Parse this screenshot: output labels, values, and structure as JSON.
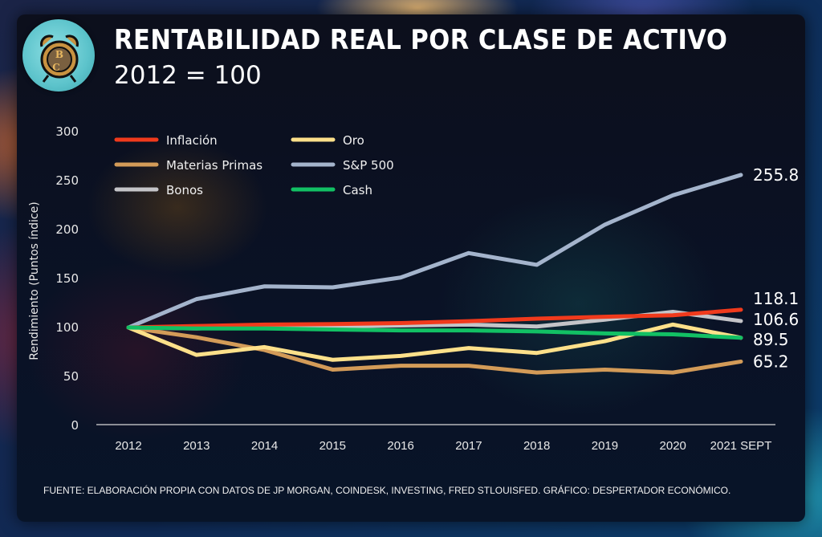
{
  "header": {
    "title": "RENTABILIDAD REAL POR CLASE DE ACTIVO",
    "subtitle": "2012 = 100"
  },
  "source": "FUENTE:  ELABORACIÓN PROPIA CON DATOS DE JP MORGAN, COINDESK, INVESTING, FRED STLOUISFED.  GRÁFICO: DESPERTADOR ECONÓMICO.",
  "logo": "alarm-clock-logo",
  "chart_data": {
    "type": "line",
    "title": "RENTABILIDAD REAL POR CLASE DE ACTIVO",
    "subtitle": "2012 = 100",
    "xlabel": "",
    "ylabel": "Rendimiento (Puntos índice)",
    "ylim": [
      0,
      300
    ],
    "yticks": [
      0,
      50,
      100,
      150,
      200,
      250,
      300
    ],
    "grid": false,
    "legend_position": "top-left",
    "categories": [
      "2012",
      "2013",
      "2014",
      "2015",
      "2016",
      "2017",
      "2018",
      "2019",
      "2020",
      "2021 SEPT"
    ],
    "series": [
      {
        "name": "Inflación",
        "color": "#f03a1c",
        "values": [
          100,
          101.5,
          103,
          103.5,
          104.5,
          106.5,
          109,
          111,
          112.5,
          118.1
        ],
        "end_label": "118.1"
      },
      {
        "name": "Materias Primas",
        "color": "#d39b58",
        "values": [
          100,
          90,
          77,
          57,
          61,
          61,
          54,
          57,
          54,
          65.2
        ],
        "end_label": "65.2"
      },
      {
        "name": "Bonos",
        "color": "#c4c4c8",
        "values": [
          100,
          99,
          101,
          101,
          102,
          103,
          101,
          108,
          116,
          106.6
        ],
        "end_label": "106.6"
      },
      {
        "name": "Oro",
        "color": "#fde08a",
        "values": [
          100,
          72,
          80,
          67,
          71,
          79,
          74,
          86,
          103,
          89.5
        ],
        "end_label": "89.5"
      },
      {
        "name": "S&P 500",
        "color": "#a4b4cc",
        "values": [
          100,
          129,
          142,
          141,
          151,
          176,
          164,
          205,
          235,
          255.8
        ],
        "end_label": "255.8"
      },
      {
        "name": "Cash",
        "color": "#12c064",
        "values": [
          100,
          99,
          99,
          98,
          97,
          97,
          96,
          94,
          93,
          89.5
        ],
        "end_label": ""
      }
    ]
  }
}
